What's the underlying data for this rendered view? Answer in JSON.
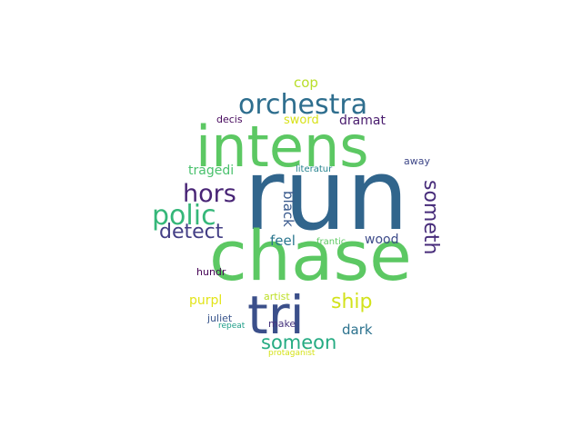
{
  "words": {
    "run": {
      "text": "run",
      "color": "#31658c"
    },
    "intens": {
      "text": "intens",
      "color": "#5cc863"
    },
    "chase": {
      "text": "chase",
      "color": "#5cc863"
    },
    "tri": {
      "text": "tri",
      "color": "#3b4f8a"
    },
    "orchestra": {
      "text": "orchestra",
      "color": "#2e6e8e"
    },
    "polic": {
      "text": "polic",
      "color": "#35b779"
    },
    "hors": {
      "text": "hors",
      "color": "#482475"
    },
    "detect": {
      "text": "detect",
      "color": "#433e85"
    },
    "someth": {
      "text": "someth",
      "color": "#472c7a"
    },
    "someon": {
      "text": "someon",
      "color": "#25ab82"
    },
    "ship": {
      "text": "ship",
      "color": "#d2e21b"
    },
    "cop": {
      "text": "cop",
      "color": "#b8de29"
    },
    "sword": {
      "text": "sword",
      "color": "#d8e219"
    },
    "dramat": {
      "text": "dramat",
      "color": "#481b6d"
    },
    "decis": {
      "text": "decis",
      "color": "#46085c"
    },
    "tragedi": {
      "text": "tragedi",
      "color": "#4ac16d"
    },
    "black": {
      "text": "black",
      "color": "#38598c"
    },
    "feel": {
      "text": "feel",
      "color": "#2a768e"
    },
    "wood": {
      "text": "wood",
      "color": "#3e4c8a"
    },
    "frantic": {
      "text": "frantic",
      "color": "#5ec962"
    },
    "literatur": {
      "text": "literatur",
      "color": "#26828e"
    },
    "away": {
      "text": "away",
      "color": "#3f4889"
    },
    "purpl": {
      "text": "purpl",
      "color": "#e2e418"
    },
    "hundr": {
      "text": "hundr",
      "color": "#440154"
    },
    "artist": {
      "text": "artist",
      "color": "#bddf26"
    },
    "dark": {
      "text": "dark",
      "color": "#2c728e"
    },
    "juliet": {
      "text": "juliet",
      "color": "#39558c"
    },
    "make": {
      "text": "make",
      "color": "#46337e"
    },
    "repeat": {
      "text": "repeat",
      "color": "#1f9e89"
    },
    "protaganist": {
      "text": "protaganist",
      "color": "#d5e21a"
    }
  }
}
